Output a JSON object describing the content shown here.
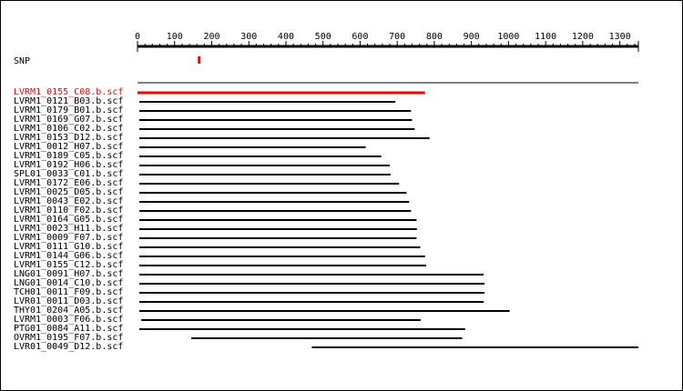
{
  "axis": {
    "min": 0,
    "max": 1350,
    "ticks": [
      0,
      100,
      200,
      300,
      400,
      500,
      600,
      700,
      800,
      900,
      1000,
      1100,
      1200,
      1300
    ]
  },
  "snp": {
    "label": "SNP",
    "position": 165,
    "color": "#ff0000"
  },
  "colors": {
    "highlight": "#ff0000",
    "normal": "#000000"
  },
  "reads": [
    {
      "label": "LVRM1_0155_C08.b.scf",
      "start": 0,
      "end": 775,
      "highlight": true
    },
    {
      "label": "LVRM1_0121_B03.b.scf",
      "start": 5,
      "end": 695,
      "highlight": false
    },
    {
      "label": "LVRM1_0179_B01.b.scf",
      "start": 5,
      "end": 737,
      "highlight": false
    },
    {
      "label": "LVRM1_0169_G07.b.scf",
      "start": 5,
      "end": 740,
      "highlight": false
    },
    {
      "label": "LVRM1_0106_C02.b.scf",
      "start": 5,
      "end": 747,
      "highlight": false
    },
    {
      "label": "LVRM1_0153_D12.b.scf",
      "start": 5,
      "end": 787,
      "highlight": false
    },
    {
      "label": "LVRM1_0012_H07.b.scf",
      "start": 5,
      "end": 615,
      "highlight": false
    },
    {
      "label": "LVRM1_0189_C05.b.scf",
      "start": 5,
      "end": 657,
      "highlight": false
    },
    {
      "label": "LVRM1_0192_H06.b.scf",
      "start": 5,
      "end": 680,
      "highlight": false
    },
    {
      "label": "SPL01_0033_C01.b.scf",
      "start": 5,
      "end": 682,
      "highlight": false
    },
    {
      "label": "LVRM1_0172_E06.b.scf",
      "start": 5,
      "end": 705,
      "highlight": false
    },
    {
      "label": "LVRM1_0025_D05.b.scf",
      "start": 5,
      "end": 725,
      "highlight": false
    },
    {
      "label": "LVRM1_0043_E02.b.scf",
      "start": 5,
      "end": 732,
      "highlight": false
    },
    {
      "label": "LVRM1_0110_F02.b.scf",
      "start": 5,
      "end": 737,
      "highlight": false
    },
    {
      "label": "LVRM1_0164_G05.b.scf",
      "start": 5,
      "end": 752,
      "highlight": false
    },
    {
      "label": "LVRM1_0023_H11.b.scf",
      "start": 5,
      "end": 753,
      "highlight": false
    },
    {
      "label": "LVRM1_0009_F07.b.scf",
      "start": 5,
      "end": 752,
      "highlight": false
    },
    {
      "label": "LVRM1_0111_G10.b.scf",
      "start": 5,
      "end": 762,
      "highlight": false
    },
    {
      "label": "LVRM1_0144_G06.b.scf",
      "start": 5,
      "end": 775,
      "highlight": false
    },
    {
      "label": "LVRM1_0155_C12.b.scf",
      "start": 5,
      "end": 778,
      "highlight": false
    },
    {
      "label": "LNG01_0091_H07.b.scf",
      "start": 5,
      "end": 933,
      "highlight": false
    },
    {
      "label": "LNG01_0014_C10.b.scf",
      "start": 5,
      "end": 935,
      "highlight": false
    },
    {
      "label": "TCH01_0011_F09.b.scf",
      "start": 5,
      "end": 935,
      "highlight": false
    },
    {
      "label": "LVR01_0011_D03.b.scf",
      "start": 5,
      "end": 933,
      "highlight": false
    },
    {
      "label": "THY01_0204_A05.b.scf",
      "start": 5,
      "end": 1003,
      "highlight": false
    },
    {
      "label": "LVRM1_0003_F06.b.scf",
      "start": 10,
      "end": 763,
      "highlight": false
    },
    {
      "label": "PTG01_0084_A11.b.scf",
      "start": 5,
      "end": 883,
      "highlight": false
    },
    {
      "label": "OVRM1_0195_F07.b.scf",
      "start": 145,
      "end": 875,
      "highlight": false
    },
    {
      "label": "LVR01_0049_D12.b.scf",
      "start": 470,
      "end": 1350,
      "highlight": false
    }
  ]
}
